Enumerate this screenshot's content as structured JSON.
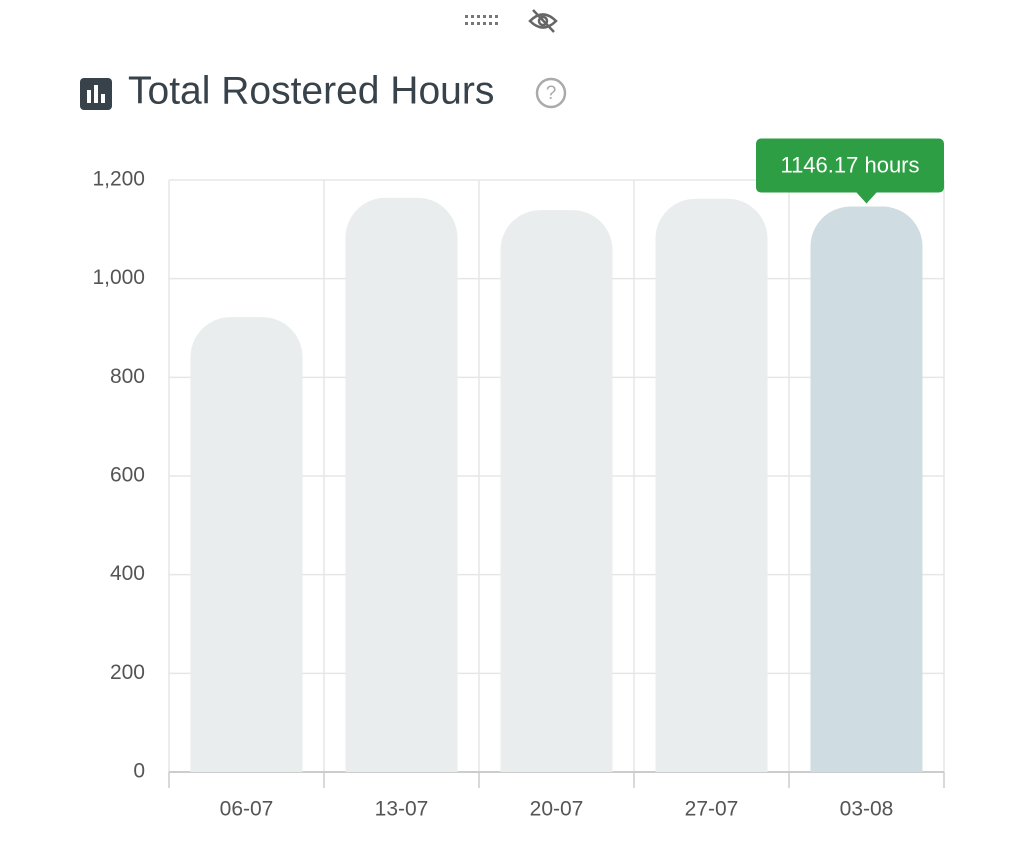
{
  "chart_data": {
    "type": "bar",
    "title": "Total Rostered Hours",
    "categories": [
      "06-07",
      "13-07",
      "20-07",
      "27-07",
      "03-08"
    ],
    "values": [
      922,
      1164,
      1139,
      1162,
      1146.17
    ],
    "value_labels": [
      null,
      null,
      null,
      null,
      "1146.17 hours"
    ],
    "colors": [
      "#e9edee",
      "#e9edee",
      "#e9edee",
      "#e9edee",
      "#cfdce1"
    ],
    "ylim": [
      0,
      1200
    ],
    "yticks": [
      0,
      200,
      400,
      600,
      800,
      {
        "value": 1000,
        "label": "1,000"
      },
      {
        "value": 1200,
        "label": "1,200"
      }
    ],
    "grid": true
  }
}
